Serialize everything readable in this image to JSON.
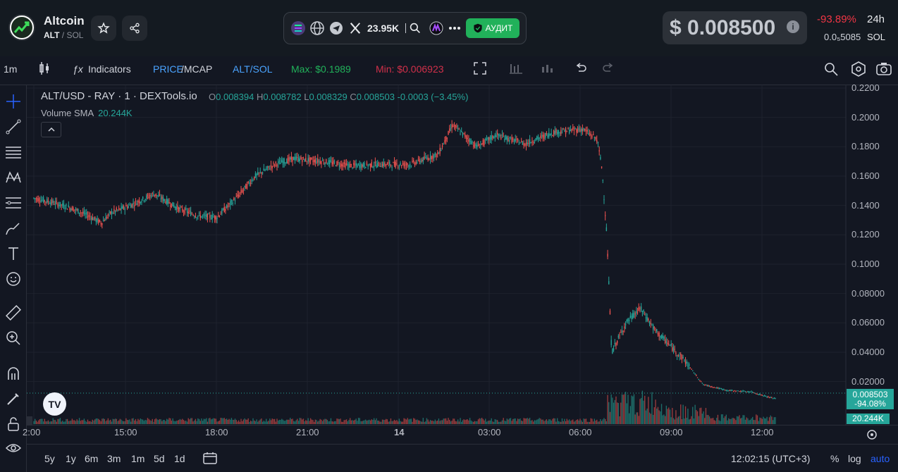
{
  "header": {
    "token_name": "Altcoin",
    "token_symbol": "ALT",
    "pair_separator": "/",
    "quote_symbol": "SOL",
    "followers": "23.95K",
    "audit_label": "АУДИТ",
    "price": "$ 0.008500",
    "price_info": "i",
    "change": "-93.89%",
    "period": "24h",
    "sol_price": "0.0₅5085",
    "sol_unit": "SOL"
  },
  "toolbar": {
    "interval": "1m",
    "indicators": "Indicators",
    "price_label": "PRICE",
    "mcap_label": "/MCAP",
    "pair_toggle": "ALT/SOL",
    "max": "Max: $0.1989",
    "min": "Min: $0.006923"
  },
  "legend": {
    "title": "ALT/USD - RAY · 1 · DEXTools.io",
    "o_label": "O",
    "o_value": "0.008394",
    "h_label": "H",
    "h_value": "0.008782",
    "l_label": "L",
    "l_value": "0.008329",
    "c_label": "C",
    "c_value": "0.008503",
    "change": "-0.0003 (−3.45%)",
    "volume_label": "Volume SMA",
    "volume_value": "20.244K"
  },
  "price_tag": {
    "price": "0.008503",
    "percent": "-94.08%"
  },
  "volume_tag": "20.244K",
  "bottom": {
    "ranges": [
      "5y",
      "1y",
      "6m",
      "3m",
      "1m",
      "5d",
      "1d"
    ],
    "clock": "12:02:15 (UTC+3)",
    "percent": "%",
    "log": "log",
    "auto": "auto"
  },
  "colors": {
    "up": "#26a69a",
    "down": "#ef5350",
    "accent": "#2962ff",
    "audit": "#21b15a"
  },
  "chart_data": {
    "type": "candlestick",
    "y_ticks": [
      "0.2200",
      "0.2000",
      "0.1800",
      "0.1600",
      "0.1400",
      "0.1200",
      "0.1000",
      "0.08000",
      "0.06000",
      "0.04000",
      "0.02000"
    ],
    "ylim": [
      0,
      0.22
    ],
    "x_ticks": [
      "2:00",
      "15:00",
      "18:00",
      "21:00",
      "14",
      "03:00",
      "06:00",
      "09:00",
      "12:00"
    ],
    "series": [
      {
        "name": "ALT/USD",
        "points": [
          [
            0.0,
            0.145
          ],
          [
            0.4,
            0.142
          ],
          [
            0.8,
            0.138
          ],
          [
            1.2,
            0.132
          ],
          [
            1.4,
            0.128
          ],
          [
            1.6,
            0.135
          ],
          [
            2.0,
            0.14
          ],
          [
            2.5,
            0.148
          ],
          [
            3.0,
            0.138
          ],
          [
            3.4,
            0.133
          ],
          [
            3.8,
            0.132
          ],
          [
            4.2,
            0.145
          ],
          [
            4.6,
            0.16
          ],
          [
            5.0,
            0.168
          ],
          [
            5.4,
            0.172
          ],
          [
            6.0,
            0.17
          ],
          [
            6.6,
            0.167
          ],
          [
            7.2,
            0.168
          ],
          [
            7.8,
            0.168
          ],
          [
            8.4,
            0.175
          ],
          [
            8.7,
            0.195
          ],
          [
            9.2,
            0.18
          ],
          [
            9.6,
            0.188
          ],
          [
            10.2,
            0.182
          ],
          [
            10.8,
            0.19
          ],
          [
            11.4,
            0.192
          ],
          [
            11.7,
            0.185
          ],
          [
            11.8,
            0.165
          ],
          [
            11.9,
            0.12
          ],
          [
            12.0,
            0.04
          ],
          [
            12.3,
            0.06
          ],
          [
            12.6,
            0.07
          ],
          [
            12.9,
            0.055
          ],
          [
            13.2,
            0.045
          ],
          [
            13.5,
            0.035
          ],
          [
            13.9,
            0.018
          ],
          [
            14.4,
            0.014
          ],
          [
            14.9,
            0.013
          ],
          [
            15.3,
            0.009
          ],
          [
            15.4,
            0.0085
          ]
        ]
      }
    ]
  }
}
